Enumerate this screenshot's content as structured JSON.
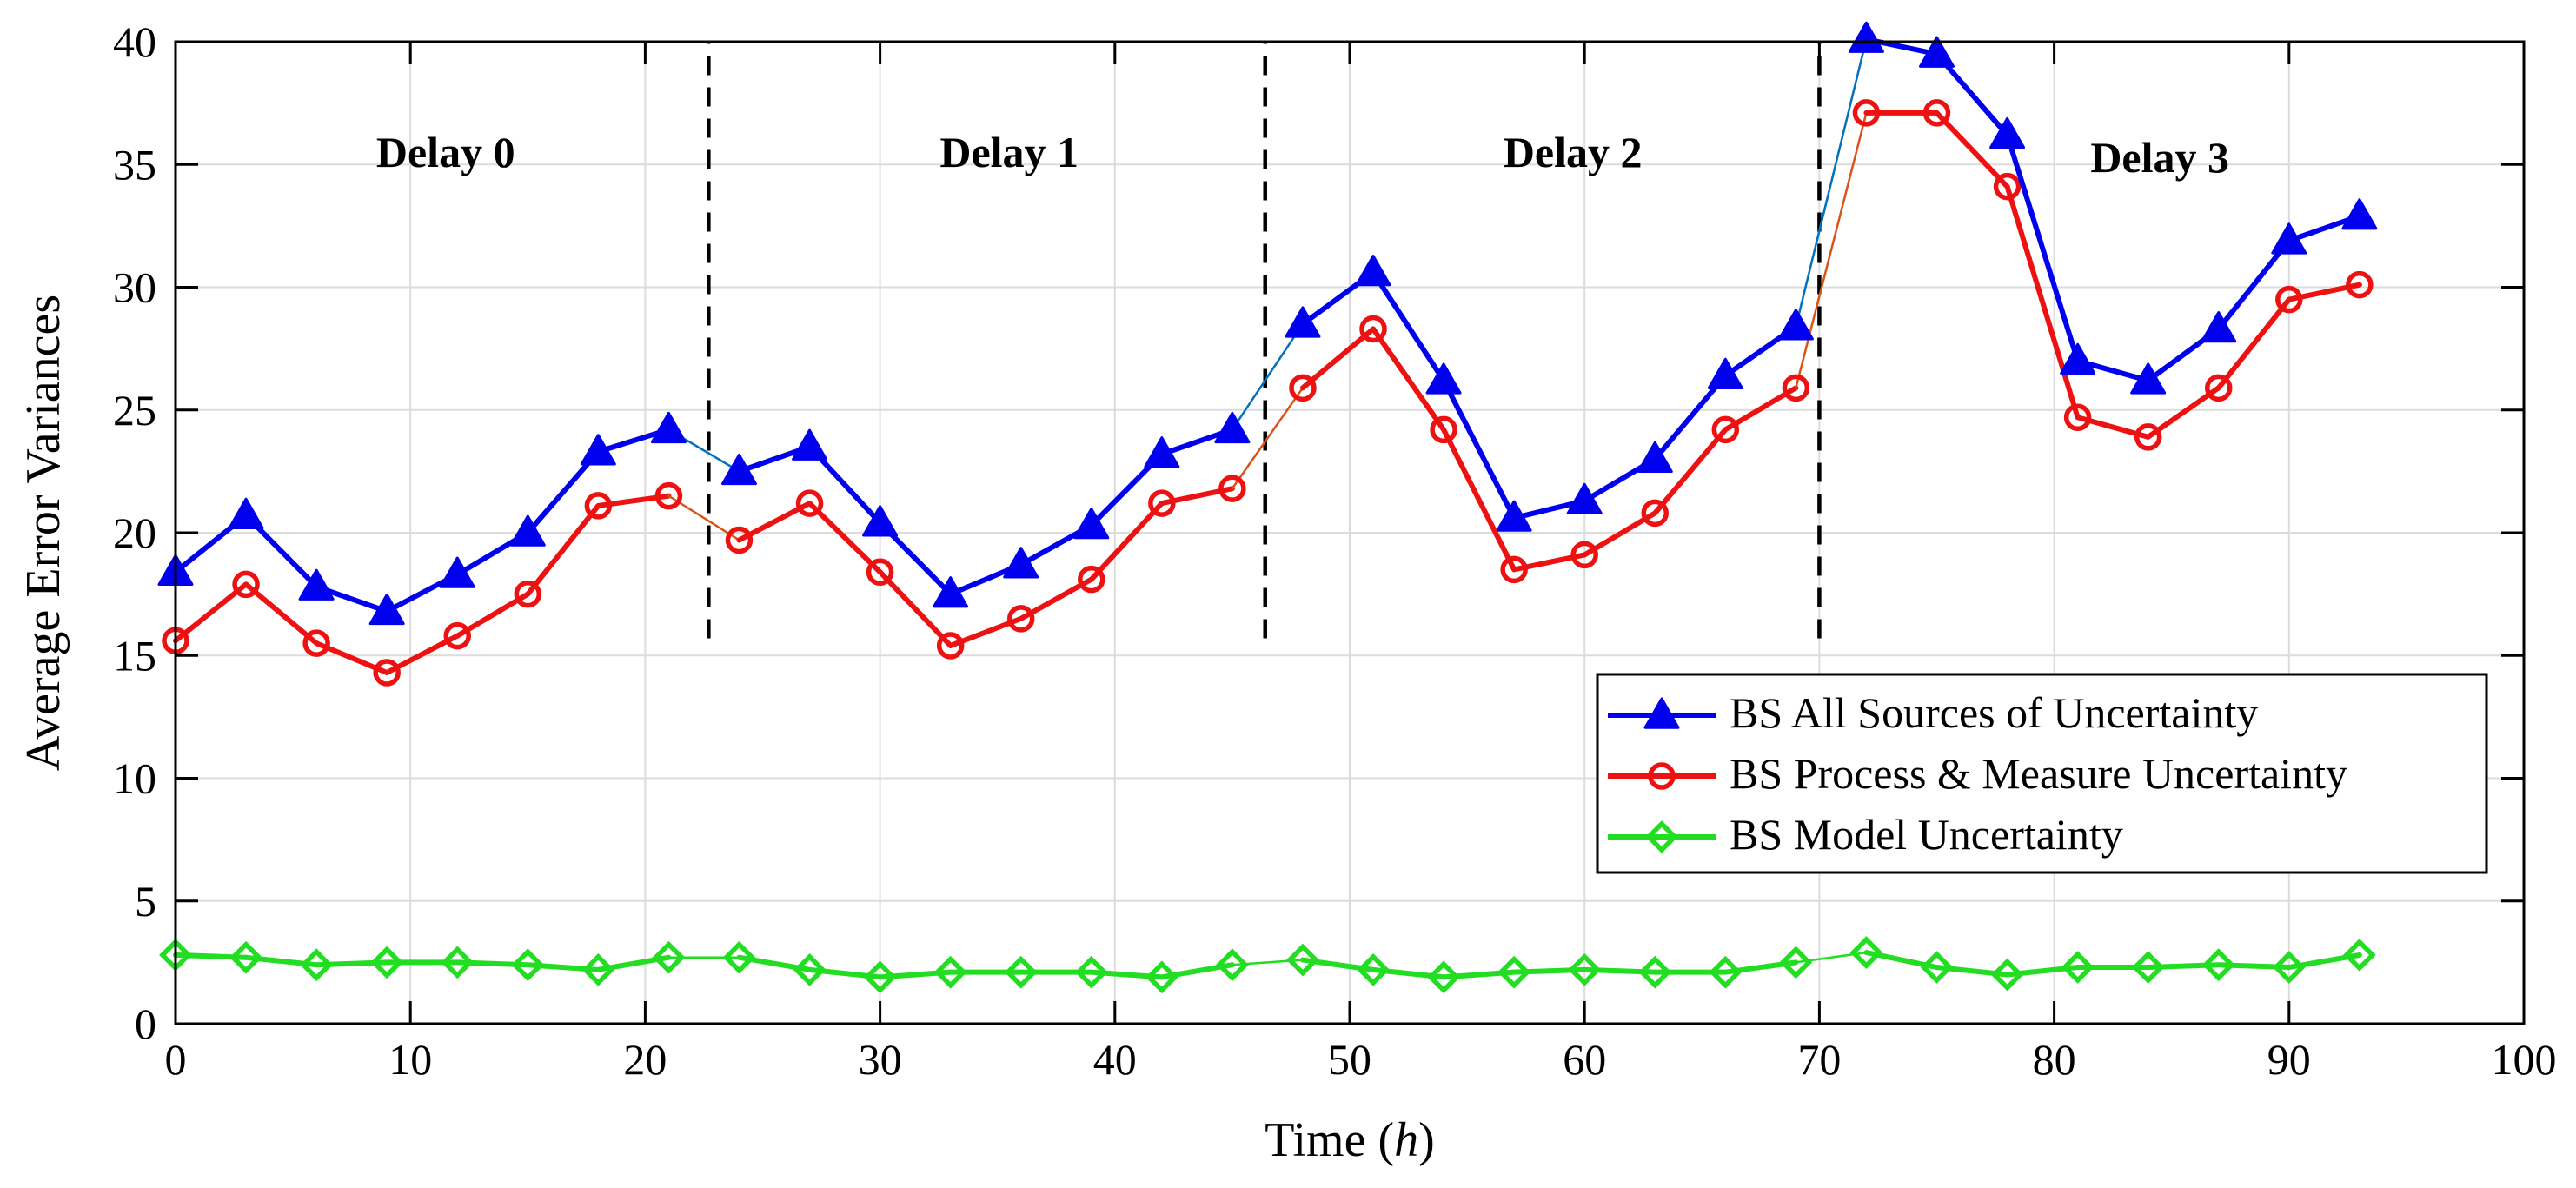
{
  "chart_data": {
    "type": "line",
    "title": "",
    "xlabel_prefix": "Time (",
    "xlabel_unit": "h",
    "xlabel_suffix": ")",
    "ylabel": "Average Error Variances",
    "xlim": [
      0,
      100
    ],
    "ylim": [
      0,
      40
    ],
    "xticks": [
      0,
      10,
      20,
      30,
      40,
      50,
      60,
      70,
      80,
      90,
      100
    ],
    "yticks": [
      0,
      5,
      10,
      15,
      20,
      25,
      30,
      35,
      40
    ],
    "grid": true,
    "legend_position": "middle-right",
    "x": [
      0,
      3,
      6,
      9,
      12,
      15,
      18,
      21,
      24,
      27,
      30,
      33,
      36,
      39,
      42,
      45,
      48,
      51,
      54,
      57,
      60,
      63,
      66,
      69,
      72,
      75,
      78,
      81,
      84,
      87,
      90,
      93
    ],
    "series": [
      {
        "name": "BS All Sources of Uncertainty",
        "color": "#0000ee",
        "connector_color": "#0072bd",
        "marker": "triangle",
        "values": [
          18.4,
          20.7,
          17.8,
          16.8,
          18.3,
          20.0,
          23.3,
          24.2,
          22.5,
          23.5,
          20.4,
          17.5,
          18.7,
          20.3,
          23.2,
          24.2,
          28.5,
          30.6,
          26.2,
          20.6,
          21.3,
          23.0,
          26.4,
          28.4,
          40.1,
          39.5,
          36.2,
          27.0,
          26.2,
          28.3,
          31.9,
          32.9
        ]
      },
      {
        "name": "BS Process & Measure Uncertainty",
        "color": "#ee1111",
        "connector_color": "#d95319",
        "marker": "circle",
        "values": [
          15.6,
          17.9,
          15.5,
          14.3,
          15.8,
          17.5,
          21.1,
          21.5,
          19.7,
          21.2,
          18.4,
          15.4,
          16.5,
          18.1,
          21.2,
          21.8,
          25.9,
          28.3,
          24.2,
          18.5,
          19.1,
          20.8,
          24.2,
          25.9,
          37.1,
          37.1,
          34.1,
          24.7,
          23.9,
          25.9,
          29.5,
          30.1
        ]
      },
      {
        "name": "BS Model Uncertainty",
        "color": "#22dd22",
        "connector_color": "#22dd22",
        "marker": "diamond",
        "values": [
          2.8,
          2.7,
          2.4,
          2.5,
          2.5,
          2.4,
          2.2,
          2.7,
          2.7,
          2.2,
          1.9,
          2.1,
          2.1,
          2.1,
          1.9,
          2.4,
          2.6,
          2.2,
          1.9,
          2.1,
          2.2,
          2.1,
          2.1,
          2.5,
          2.9,
          2.3,
          2.0,
          2.3,
          2.3,
          2.4,
          2.3,
          2.8
        ]
      }
    ],
    "segments": [
      {
        "label": "Delay 0",
        "start_index": 0,
        "end_index": 7
      },
      {
        "label": "Delay 1",
        "start_index": 8,
        "end_index": 15
      },
      {
        "label": "Delay 2",
        "start_index": 16,
        "end_index": 23
      },
      {
        "label": "Delay 3",
        "start_index": 24,
        "end_index": 31
      }
    ],
    "annotations": [
      {
        "text": "Delay 0",
        "x": 11.5,
        "y": 35.5
      },
      {
        "text": "Delay 1",
        "x": 35.5,
        "y": 35.5
      },
      {
        "text": "Delay 2",
        "x": 59.5,
        "y": 35.5
      },
      {
        "text": "Delay 3",
        "x": 84.5,
        "y": 35.3
      }
    ],
    "dividers": [
      {
        "x": 22.7,
        "y_from": 15.7,
        "y_to": 40
      },
      {
        "x": 46.4,
        "y_from": 15.7,
        "y_to": 40
      },
      {
        "x": 70.0,
        "y_from": 15.7,
        "y_to": 40
      }
    ]
  }
}
